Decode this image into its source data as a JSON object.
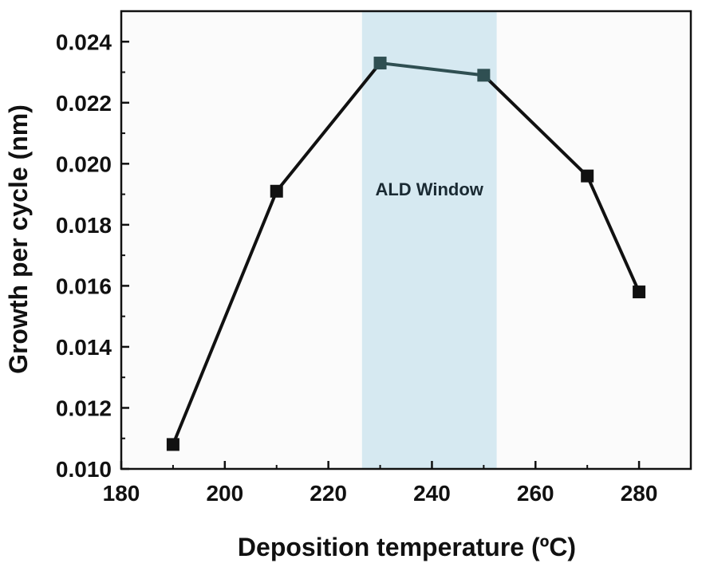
{
  "chart_data": {
    "type": "line",
    "title": "",
    "xlabel": "Deposition temperature (ºC)",
    "ylabel": "Growth per cycle (nm)",
    "xlim": [
      180,
      290
    ],
    "ylim": [
      0.01,
      0.025
    ],
    "x_ticks": [
      "180",
      "200",
      "220",
      "240",
      "260",
      "280"
    ],
    "y_ticks": [
      "0.010",
      "0.012",
      "0.014",
      "0.016",
      "0.018",
      "0.020",
      "0.022",
      "0.024"
    ],
    "series": [
      {
        "name": "",
        "color": "#111111",
        "marker": "square",
        "x": [
          190,
          210,
          230,
          250,
          270,
          280
        ],
        "y": [
          0.0108,
          0.0191,
          0.0233,
          0.0229,
          0.0196,
          0.0158
        ]
      }
    ],
    "shaded_region": {
      "label": "ALD Window",
      "x_range": [
        226.5,
        252.5
      ],
      "color": "#d6e9f1",
      "segment_color": "#2f4f52"
    },
    "grid": false,
    "legend": "none"
  }
}
